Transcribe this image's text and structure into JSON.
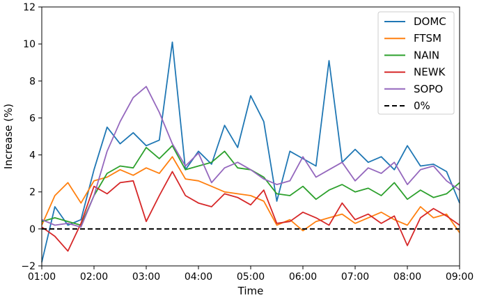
{
  "chart_data": {
    "type": "line",
    "xlabel": "Time",
    "ylabel": "Increase (%)",
    "xlim": [
      "01:00",
      "09:00"
    ],
    "ylim": [
      -2,
      12
    ],
    "x_ticks": [
      "01:00",
      "02:00",
      "03:00",
      "04:00",
      "05:00",
      "06:00",
      "07:00",
      "08:00",
      "09:00"
    ],
    "y_ticks": [
      -2,
      0,
      2,
      4,
      6,
      8,
      10,
      12
    ],
    "grid": false,
    "legend_position": "top-right",
    "x": [
      "01:00",
      "01:15",
      "01:30",
      "01:45",
      "02:00",
      "02:15",
      "02:30",
      "02:45",
      "03:00",
      "03:15",
      "03:30",
      "03:45",
      "04:00",
      "04:15",
      "04:30",
      "04:45",
      "05:00",
      "05:15",
      "05:30",
      "05:45",
      "06:00",
      "06:15",
      "06:30",
      "06:45",
      "07:00",
      "07:15",
      "07:30",
      "07:45",
      "08:00",
      "08:15",
      "08:30",
      "08:45",
      "09:00"
    ],
    "series": [
      {
        "name": "DOMC",
        "color": "#1f77b4",
        "style": "solid",
        "values": [
          -1.8,
          1.2,
          0.2,
          0.5,
          3.2,
          5.5,
          4.6,
          5.2,
          4.5,
          4.8,
          10.1,
          3.2,
          4.2,
          3.5,
          5.6,
          4.4,
          7.2,
          5.8,
          1.5,
          4.2,
          3.8,
          3.4,
          9.1,
          3.6,
          4.3,
          3.6,
          3.9,
          3.2,
          4.5,
          3.4,
          3.5,
          3.1,
          1.4
        ]
      },
      {
        "name": "FTSM",
        "color": "#ff7f0e",
        "style": "solid",
        "values": [
          0.2,
          1.8,
          2.5,
          1.4,
          2.6,
          2.8,
          3.2,
          2.9,
          3.3,
          3.0,
          3.9,
          2.7,
          2.6,
          2.3,
          2.0,
          1.9,
          1.8,
          1.5,
          0.2,
          0.5,
          -0.1,
          0.4,
          0.6,
          0.8,
          0.3,
          0.6,
          0.9,
          0.5,
          0.2,
          1.2,
          0.6,
          0.8,
          -0.2
        ]
      },
      {
        "name": "NAIN",
        "color": "#2ca02c",
        "style": "solid",
        "values": [
          0.4,
          0.6,
          0.4,
          0.2,
          1.8,
          3.0,
          3.4,
          3.3,
          4.4,
          3.8,
          4.5,
          3.2,
          3.4,
          3.6,
          4.2,
          3.3,
          3.2,
          2.8,
          1.9,
          1.8,
          2.3,
          1.6,
          2.1,
          2.4,
          2.0,
          2.2,
          1.8,
          2.5,
          1.6,
          2.1,
          1.7,
          1.9,
          2.5
        ]
      },
      {
        "name": "NEWK",
        "color": "#d62728",
        "style": "solid",
        "values": [
          0.1,
          -0.4,
          -1.2,
          0.3,
          2.3,
          1.9,
          2.5,
          2.6,
          0.4,
          1.8,
          3.1,
          1.8,
          1.4,
          1.2,
          1.9,
          1.7,
          1.3,
          2.1,
          0.3,
          0.4,
          0.9,
          0.6,
          0.2,
          1.4,
          0.5,
          0.8,
          0.3,
          0.7,
          -0.9,
          0.6,
          1.1,
          0.7,
          0.2
        ]
      },
      {
        "name": "SOPO",
        "color": "#9467bd",
        "style": "solid",
        "values": [
          0.5,
          0.2,
          0.3,
          0.1,
          1.8,
          4.2,
          5.8,
          7.1,
          7.7,
          6.3,
          4.6,
          3.4,
          4.1,
          2.5,
          3.3,
          3.6,
          3.2,
          2.7,
          2.4,
          2.6,
          3.9,
          2.8,
          3.2,
          3.6,
          2.6,
          3.3,
          3.0,
          3.6,
          2.4,
          3.2,
          3.4,
          2.6,
          2.1
        ]
      },
      {
        "name": "0%",
        "color": "#000000",
        "style": "dashed",
        "values": [
          0,
          0,
          0,
          0,
          0,
          0,
          0,
          0,
          0,
          0,
          0,
          0,
          0,
          0,
          0,
          0,
          0,
          0,
          0,
          0,
          0,
          0,
          0,
          0,
          0,
          0,
          0,
          0,
          0,
          0,
          0,
          0,
          0
        ]
      }
    ]
  }
}
